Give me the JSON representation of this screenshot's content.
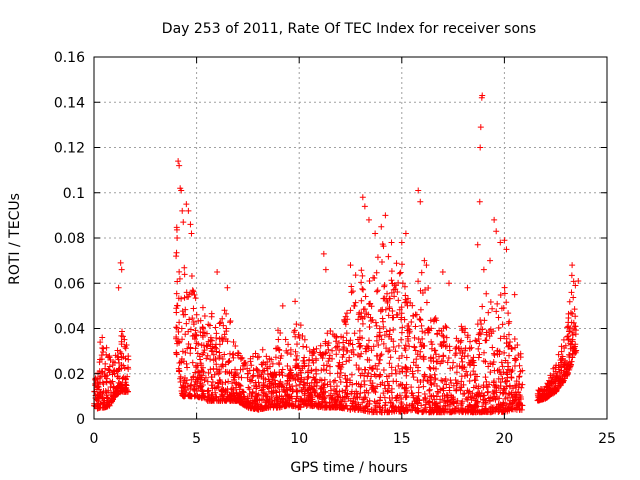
{
  "chart_data": {
    "type": "scatter",
    "title": "Day 253 of 2011, Rate Of TEC Index for receiver sons",
    "xlabel": "GPS time / hours",
    "ylabel": "ROTI / TECUs",
    "xlim": [
      0,
      25
    ],
    "ylim": [
      0,
      0.16
    ],
    "x_ticks": [
      "0",
      "5",
      "10",
      "15",
      "20",
      "25"
    ],
    "y_ticks": [
      "0",
      "0.02",
      "0.04",
      "0.06",
      "0.08",
      "0.1",
      "0.12",
      "0.14",
      "0.16"
    ],
    "grid": true,
    "marker": "plus",
    "colors": {
      "series": "#ff0000"
    },
    "envelope": [
      [
        0.0,
        0.004,
        0.021
      ],
      [
        0.3,
        0.005,
        0.03
      ],
      [
        0.5,
        0.005,
        0.036
      ],
      [
        0.8,
        0.006,
        0.028
      ],
      [
        1.0,
        0.01,
        0.026
      ],
      [
        1.3,
        0.012,
        0.04
      ],
      [
        1.5,
        0.012,
        0.037
      ],
      [
        1.7,
        0.012,
        0.03
      ],
      [
        2.0,
        null,
        null
      ],
      [
        3.8,
        null,
        null
      ],
      [
        4.0,
        0.03,
        0.095
      ],
      [
        4.3,
        0.01,
        0.06
      ],
      [
        4.6,
        0.01,
        0.09
      ],
      [
        5.0,
        0.01,
        0.05
      ],
      [
        5.5,
        0.008,
        0.05
      ],
      [
        6.0,
        0.008,
        0.045
      ],
      [
        6.5,
        0.008,
        0.05
      ],
      [
        7.0,
        0.008,
        0.03
      ],
      [
        7.5,
        0.005,
        0.025
      ],
      [
        8.0,
        0.004,
        0.032
      ],
      [
        8.5,
        0.005,
        0.03
      ],
      [
        9.0,
        0.005,
        0.04
      ],
      [
        9.5,
        0.006,
        0.035
      ],
      [
        10.0,
        0.005,
        0.045
      ],
      [
        10.5,
        0.006,
        0.03
      ],
      [
        11.0,
        0.005,
        0.035
      ],
      [
        11.5,
        0.005,
        0.04
      ],
      [
        12.0,
        0.005,
        0.035
      ],
      [
        12.5,
        0.004,
        0.06
      ],
      [
        13.0,
        0.004,
        0.07
      ],
      [
        13.5,
        0.003,
        0.06
      ],
      [
        14.0,
        0.003,
        0.08
      ],
      [
        14.5,
        0.003,
        0.07
      ],
      [
        15.0,
        0.003,
        0.07
      ],
      [
        15.5,
        0.004,
        0.05
      ],
      [
        16.0,
        0.003,
        0.07
      ],
      [
        16.5,
        0.003,
        0.05
      ],
      [
        17.0,
        0.003,
        0.04
      ],
      [
        17.5,
        0.003,
        0.045
      ],
      [
        18.0,
        0.003,
        0.04
      ],
      [
        18.5,
        0.003,
        0.04
      ],
      [
        19.0,
        0.003,
        0.06
      ],
      [
        19.5,
        0.003,
        0.05
      ],
      [
        20.0,
        0.003,
        0.06
      ],
      [
        20.5,
        0.004,
        0.04
      ],
      [
        20.9,
        0.004,
        0.025
      ],
      [
        21.0,
        null,
        null
      ],
      [
        21.5,
        null,
        null
      ],
      [
        21.6,
        0.008,
        0.013
      ],
      [
        22.0,
        0.009,
        0.014
      ],
      [
        22.5,
        0.012,
        0.025
      ],
      [
        23.0,
        0.018,
        0.04
      ],
      [
        23.3,
        0.025,
        0.065
      ],
      [
        23.5,
        0.03,
        0.06
      ]
    ],
    "outliers": [
      [
        0.3,
        0.034
      ],
      [
        0.4,
        0.036
      ],
      [
        1.2,
        0.058
      ],
      [
        1.3,
        0.069
      ],
      [
        1.35,
        0.066
      ],
      [
        4.0,
        0.072
      ],
      [
        4.05,
        0.08
      ],
      [
        4.1,
        0.114
      ],
      [
        4.15,
        0.112
      ],
      [
        4.2,
        0.102
      ],
      [
        4.25,
        0.101
      ],
      [
        4.3,
        0.092
      ],
      [
        4.35,
        0.087
      ],
      [
        4.5,
        0.095
      ],
      [
        4.6,
        0.092
      ],
      [
        4.7,
        0.086
      ],
      [
        4.75,
        0.082
      ],
      [
        6.0,
        0.065
      ],
      [
        6.5,
        0.058
      ],
      [
        9.2,
        0.05
      ],
      [
        9.8,
        0.052
      ],
      [
        11.2,
        0.073
      ],
      [
        11.3,
        0.066
      ],
      [
        12.5,
        0.068
      ],
      [
        13.1,
        0.098
      ],
      [
        13.2,
        0.094
      ],
      [
        13.4,
        0.088
      ],
      [
        13.7,
        0.082
      ],
      [
        14.0,
        0.085
      ],
      [
        14.2,
        0.09
      ],
      [
        14.5,
        0.078
      ],
      [
        15.0,
        0.078
      ],
      [
        15.2,
        0.082
      ],
      [
        15.8,
        0.101
      ],
      [
        15.9,
        0.096
      ],
      [
        16.1,
        0.07
      ],
      [
        16.2,
        0.068
      ],
      [
        17.0,
        0.065
      ],
      [
        17.3,
        0.06
      ],
      [
        18.2,
        0.058
      ],
      [
        18.7,
        0.077
      ],
      [
        18.8,
        0.096
      ],
      [
        18.82,
        0.12
      ],
      [
        18.85,
        0.129
      ],
      [
        18.9,
        0.142
      ],
      [
        18.92,
        0.143
      ],
      [
        19.0,
        0.066
      ],
      [
        19.3,
        0.07
      ],
      [
        19.5,
        0.088
      ],
      [
        19.6,
        0.083
      ],
      [
        19.8,
        0.078
      ],
      [
        20.0,
        0.079
      ],
      [
        20.1,
        0.075
      ],
      [
        20.5,
        0.055
      ],
      [
        22.9,
        0.035
      ],
      [
        23.3,
        0.068
      ],
      [
        23.6,
        0.061
      ]
    ]
  }
}
